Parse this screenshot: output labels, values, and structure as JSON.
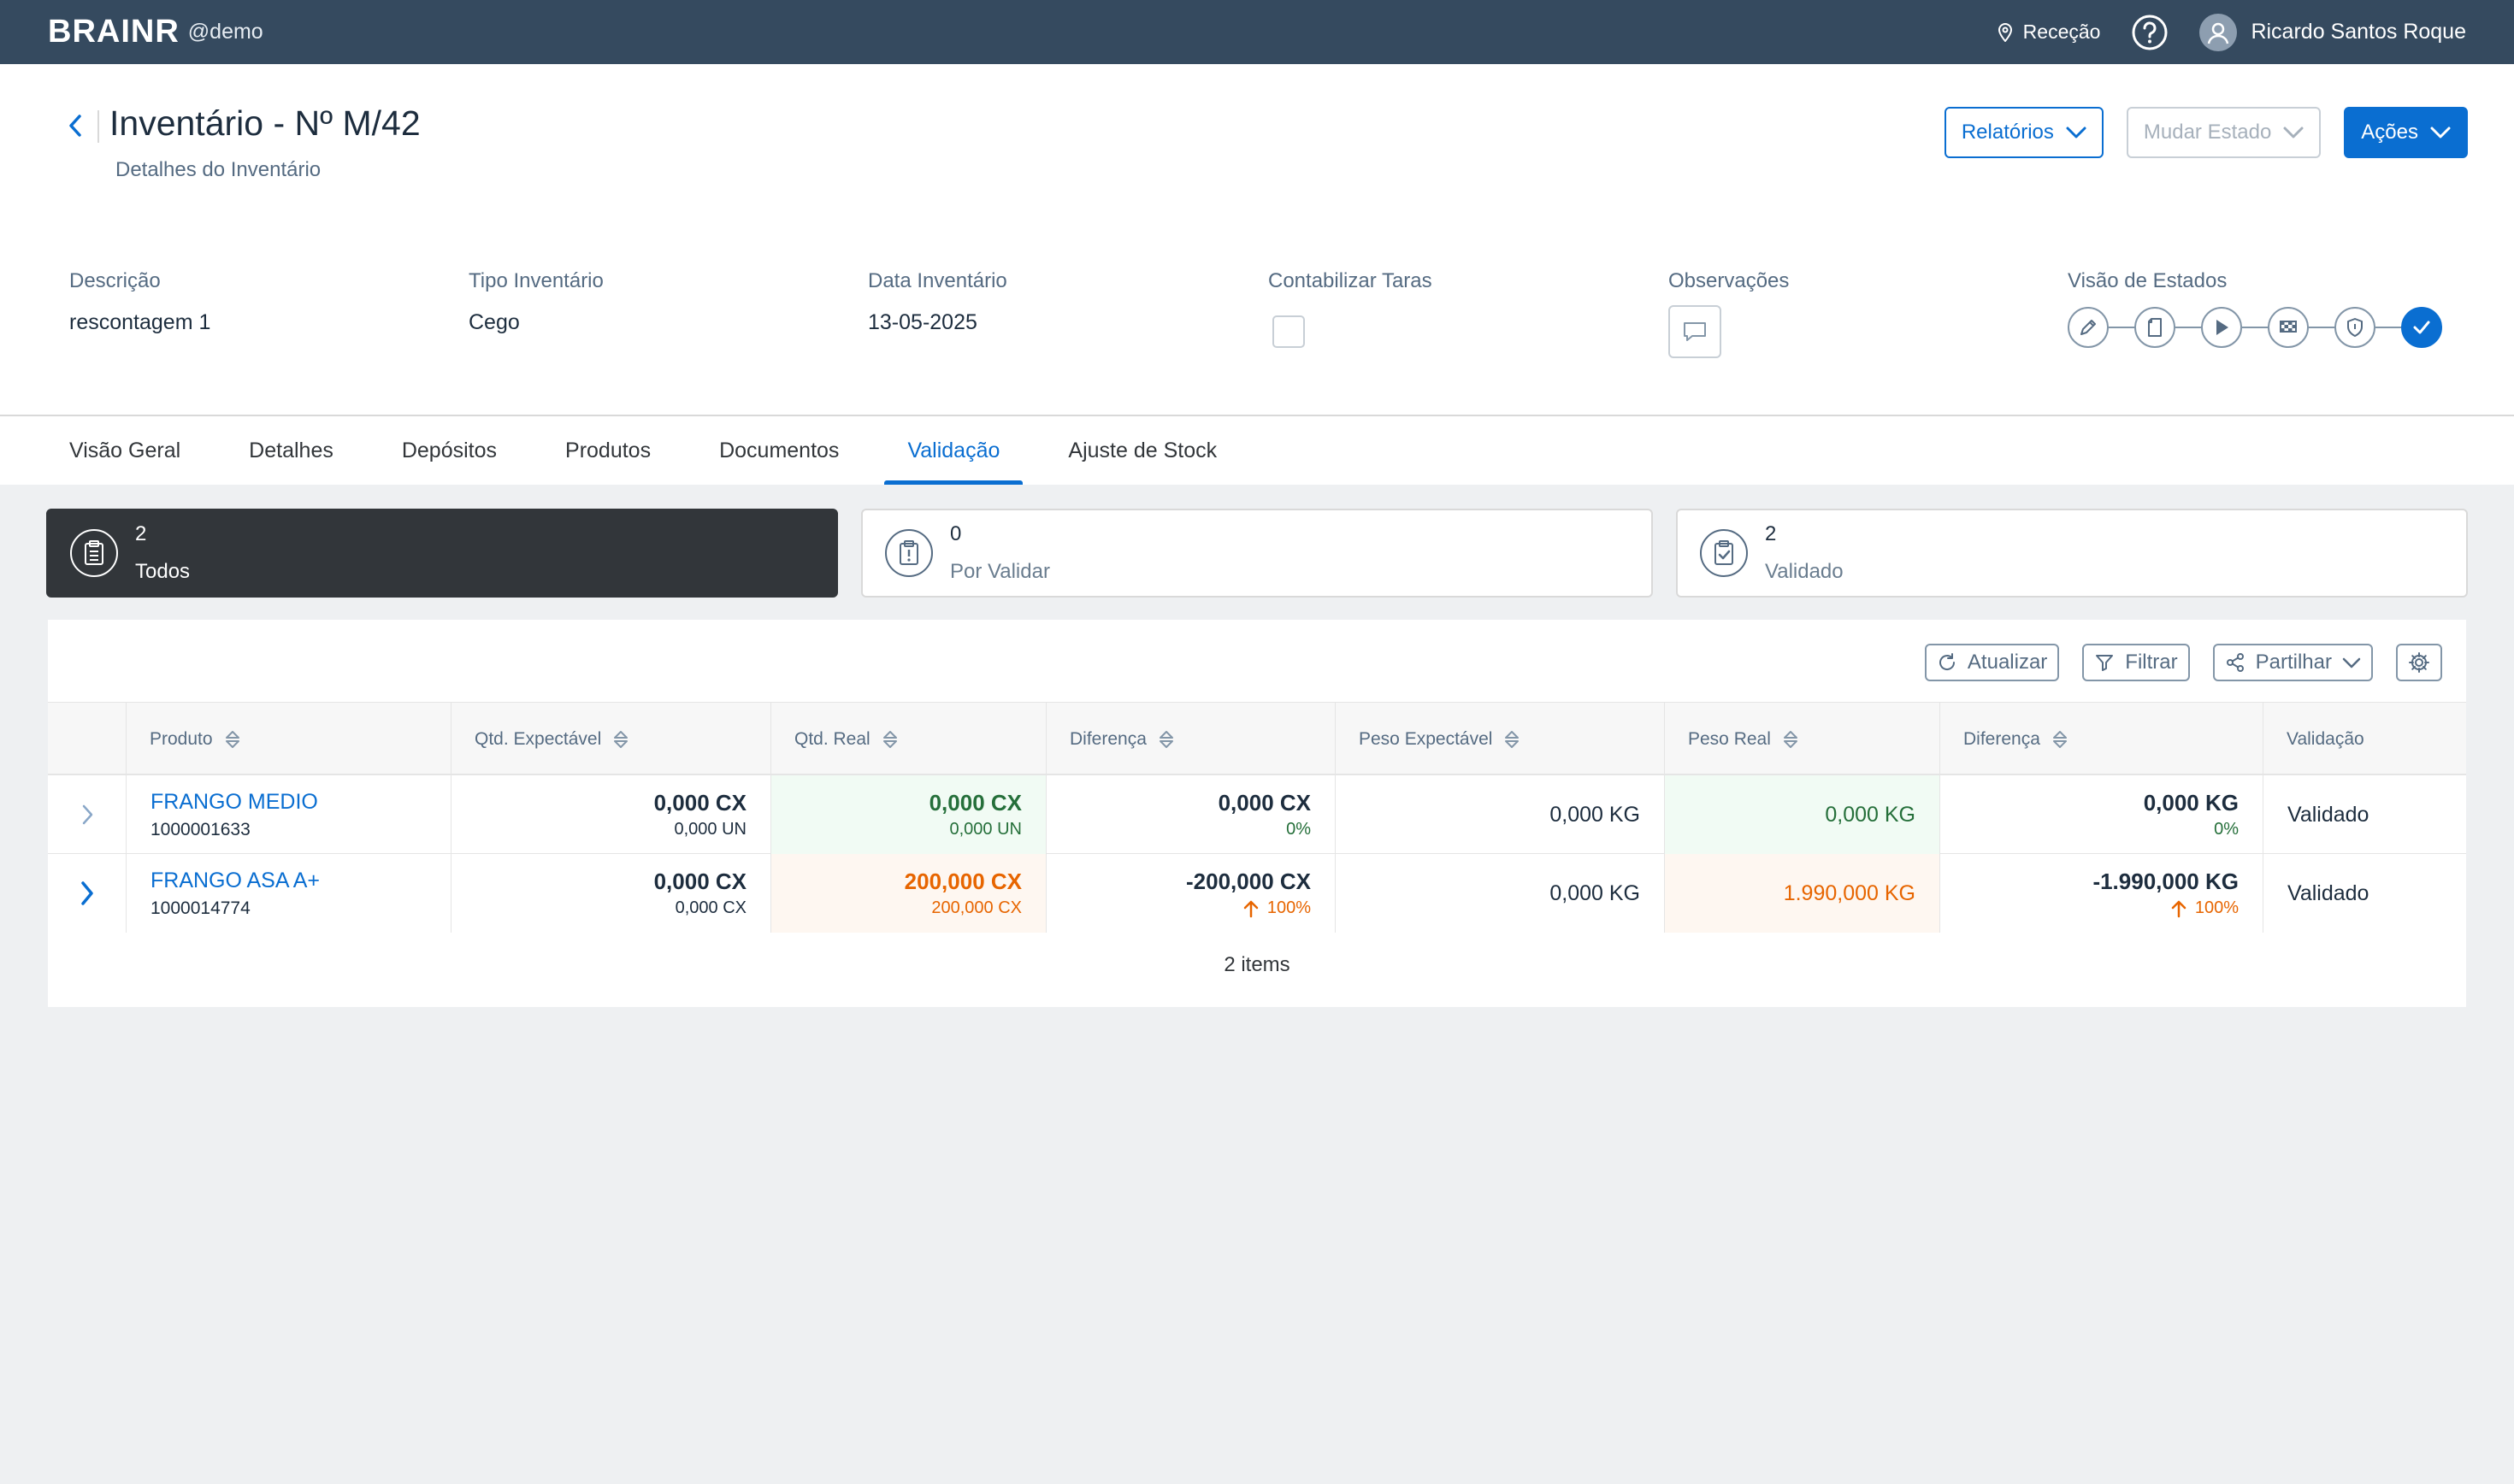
{
  "topbar": {
    "brand": "BRAINR",
    "tenant": "@demo",
    "location": "Receção",
    "user_name": "Ricardo Santos Roque",
    "icons": [
      "location-icon",
      "help-icon",
      "avatar-icon"
    ]
  },
  "header": {
    "title": "Inventário - Nº M/42",
    "subtitle": "Detalhes do Inventário",
    "buttons": {
      "reports": "Relatórios",
      "change_state": "Mudar Estado",
      "actions": "Ações"
    }
  },
  "fields": {
    "description": {
      "label": "Descrição",
      "value": "rescontagem 1"
    },
    "type": {
      "label": "Tipo Inventário",
      "value": "Cego"
    },
    "date": {
      "label": "Data Inventário",
      "value": "13-05-2025"
    },
    "tares": {
      "label": "Contabilizar Taras",
      "checked": false
    },
    "observations": {
      "label": "Observações"
    },
    "states": {
      "label": "Visão de Estados",
      "steps": [
        "edit-icon",
        "document-icon",
        "play-icon",
        "checkered-flag-icon",
        "shield-icon",
        "check-icon"
      ],
      "current": 5
    }
  },
  "tabs": [
    {
      "label": "Visão Geral",
      "active": false
    },
    {
      "label": "Detalhes",
      "active": false
    },
    {
      "label": "Depósitos",
      "active": false
    },
    {
      "label": "Produtos",
      "active": false
    },
    {
      "label": "Documentos",
      "active": false
    },
    {
      "label": "Validação",
      "active": true
    },
    {
      "label": "Ajuste de Stock",
      "active": false
    }
  ],
  "stats": [
    {
      "count": "2",
      "label": "Todos",
      "icon": "clipboard-icon",
      "active": true
    },
    {
      "count": "0",
      "label": "Por Validar",
      "icon": "clipboard-alert-icon",
      "active": false
    },
    {
      "count": "2",
      "label": "Validado",
      "icon": "clipboard-check-icon",
      "active": false
    }
  ],
  "toolbar": {
    "refresh": "Atualizar",
    "filter": "Filtrar",
    "share": "Partilhar"
  },
  "table": {
    "columns": [
      "Produto",
      "Qtd. Expectável",
      "Qtd. Real",
      "Diferença",
      "Peso Expectável",
      "Peso Real",
      "Diferença",
      "Validação"
    ],
    "rows": [
      {
        "product": "FRANGO MEDIO",
        "code": "1000001633",
        "qty_expected": "0,000 CX",
        "qty_expected_sub": "0,000 UN",
        "qty_real": "0,000 CX",
        "qty_real_sub": "0,000 UN",
        "qty_diff": "0,000 CX",
        "qty_diff_pct": "0%",
        "weight_expected": "0,000 KG",
        "weight_real": "0,000 KG",
        "weight_diff": "0,000 KG",
        "weight_diff_pct": "0%",
        "validation": "Validado",
        "status": "ok"
      },
      {
        "product": "FRANGO ASA A+",
        "code": "1000014774",
        "qty_expected": "0,000 CX",
        "qty_expected_sub": "0,000 CX",
        "qty_real": "200,000 CX",
        "qty_real_sub": "200,000 CX",
        "qty_diff": "-200,000 CX",
        "qty_diff_pct": "100%",
        "weight_expected": "0,000 KG",
        "weight_real": "1.990,000 KG",
        "weight_diff": "-1.990,000 KG",
        "weight_diff_pct": "100%",
        "validation": "Validado",
        "status": "warning"
      }
    ],
    "footer": "2 items"
  },
  "colors": {
    "shell": "#354a5f",
    "accent": "#0a6ed1",
    "positive": "#256f3a",
    "warning": "#e76500"
  }
}
